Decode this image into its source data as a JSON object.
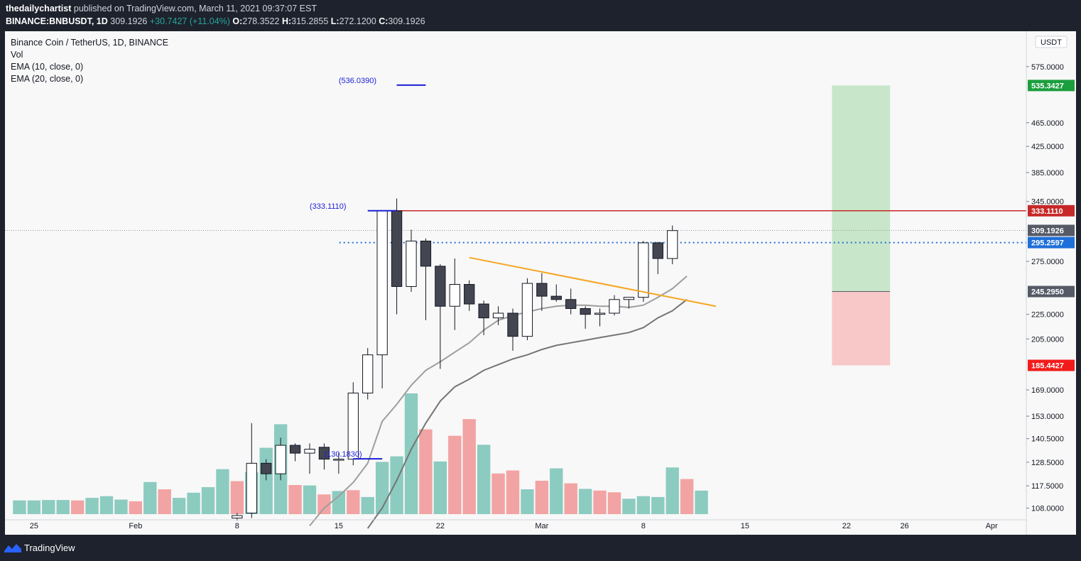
{
  "header": {
    "publisher": "thedailychartist",
    "published_text": "published on TradingView.com, March 11, 2021 09:37:07 EST",
    "symbol": "BINANCE:BNBUSDT, 1D",
    "last": "309.1926",
    "change": "+30.7427 (+11.04%)",
    "o_label": "O:",
    "o": "278.3522",
    "h_label": "H:",
    "h": "315.2855",
    "l_label": "L:",
    "l": "272.1200",
    "c_label": "C:",
    "c": "309.1926"
  },
  "legend": {
    "title": "Binance Coin / TetherUS, 1D, BINANCE",
    "vol": "Vol",
    "ema10": "EMA (10, close, 0)",
    "ema20": "EMA (20, close, 0)"
  },
  "footer": {
    "brand": "TradingView",
    "logo_icon": "tradingview-logo-icon"
  },
  "chart_data": {
    "type": "candlestick",
    "y_axis": {
      "scale": "log",
      "currency": "USDT",
      "ticks": [
        "108.0000",
        "117.5000",
        "128.5000",
        "140.5000",
        "153.0000",
        "169.0000",
        "205.0000",
        "225.0000",
        "275.0000",
        "345.0000",
        "385.0000",
        "425.0000",
        "465.0000",
        "575.0000"
      ],
      "tick_values": [
        108,
        117.5,
        128.5,
        140.5,
        153,
        169,
        205,
        225,
        275,
        345,
        385,
        425,
        465,
        575
      ],
      "range": [
        105,
        640
      ]
    },
    "x_axis": {
      "ticks": [
        "25",
        "Feb",
        "8",
        "15",
        "22",
        "Mar",
        "8",
        "15",
        "22",
        "26",
        "Apr"
      ],
      "tick_dates": [
        "2021-01-25",
        "2021-02-01",
        "2021-02-08",
        "2021-02-15",
        "2021-02-22",
        "2021-03-01",
        "2021-03-08",
        "2021-03-15",
        "2021-03-22",
        "2021-03-26",
        "2021-04-01"
      ],
      "range": [
        "2021-01-23",
        "2021-04-03"
      ]
    },
    "candles": [
      {
        "d": "2021-02-08",
        "o": 104,
        "h": 106,
        "l": 103,
        "c": 105
      },
      {
        "d": "2021-02-09",
        "o": 106,
        "h": 149,
        "l": 104,
        "c": 128
      },
      {
        "d": "2021-02-10",
        "o": 128,
        "h": 130,
        "l": 120,
        "c": 123
      },
      {
        "d": "2021-02-11",
        "o": 123,
        "h": 141,
        "l": 120,
        "c": 137
      },
      {
        "d": "2021-02-12",
        "o": 137,
        "h": 138,
        "l": 129,
        "c": 133
      },
      {
        "d": "2021-02-13",
        "o": 133,
        "h": 138,
        "l": 123,
        "c": 135
      },
      {
        "d": "2021-02-14",
        "o": 136,
        "h": 138,
        "l": 125,
        "c": 130
      },
      {
        "d": "2021-02-15",
        "o": 130,
        "h": 133,
        "l": 123,
        "c": 130
      },
      {
        "d": "2021-02-16",
        "o": 130,
        "h": 174,
        "l": 127,
        "c": 167
      },
      {
        "d": "2021-02-17",
        "o": 167,
        "h": 198,
        "l": 163,
        "c": 193
      },
      {
        "d": "2021-02-18",
        "o": 193,
        "h": 333,
        "l": 170,
        "c": 333
      },
      {
        "d": "2021-02-19",
        "o": 333,
        "h": 349,
        "l": 225,
        "c": 250
      },
      {
        "d": "2021-02-20",
        "o": 250,
        "h": 310,
        "l": 245,
        "c": 297
      },
      {
        "d": "2021-02-21",
        "o": 297,
        "h": 300,
        "l": 220,
        "c": 270
      },
      {
        "d": "2021-02-22",
        "o": 270,
        "h": 272,
        "l": 183,
        "c": 232
      },
      {
        "d": "2021-02-23",
        "o": 232,
        "h": 278,
        "l": 212,
        "c": 252
      },
      {
        "d": "2021-02-24",
        "o": 252,
        "h": 256,
        "l": 228,
        "c": 234
      },
      {
        "d": "2021-02-25",
        "o": 234,
        "h": 237,
        "l": 208,
        "c": 222
      },
      {
        "d": "2021-02-26",
        "o": 222,
        "h": 232,
        "l": 216,
        "c": 226
      },
      {
        "d": "2021-02-27",
        "o": 226,
        "h": 230,
        "l": 196,
        "c": 207
      },
      {
        "d": "2021-02-28",
        "o": 207,
        "h": 258,
        "l": 204,
        "c": 253
      },
      {
        "d": "2021-03-01",
        "o": 253,
        "h": 263,
        "l": 228,
        "c": 241
      },
      {
        "d": "2021-03-02",
        "o": 241,
        "h": 252,
        "l": 236,
        "c": 238
      },
      {
        "d": "2021-03-03",
        "o": 238,
        "h": 248,
        "l": 225,
        "c": 230
      },
      {
        "d": "2021-03-04",
        "o": 230,
        "h": 232,
        "l": 213,
        "c": 225
      },
      {
        "d": "2021-03-05",
        "o": 225,
        "h": 230,
        "l": 215,
        "c": 226
      },
      {
        "d": "2021-03-06",
        "o": 226,
        "h": 242,
        "l": 224,
        "c": 238
      },
      {
        "d": "2021-03-07",
        "o": 238,
        "h": 240,
        "l": 230,
        "c": 240
      },
      {
        "d": "2021-03-08",
        "o": 240,
        "h": 297,
        "l": 236,
        "c": 295
      },
      {
        "d": "2021-03-09",
        "o": 295,
        "h": 296,
        "l": 262,
        "c": 278
      },
      {
        "d": "2021-03-10",
        "o": 278,
        "h": 315,
        "l": 272,
        "c": 309
      }
    ],
    "volume": [
      {
        "d": "2021-01-24",
        "v": 0.032,
        "up": true
      },
      {
        "d": "2021-01-25",
        "v": 0.032,
        "up": true
      },
      {
        "d": "2021-01-26",
        "v": 0.033,
        "up": true
      },
      {
        "d": "2021-01-27",
        "v": 0.033,
        "up": true
      },
      {
        "d": "2021-01-28",
        "v": 0.032,
        "up": false
      },
      {
        "d": "2021-01-29",
        "v": 0.038,
        "up": true
      },
      {
        "d": "2021-01-30",
        "v": 0.042,
        "up": true
      },
      {
        "d": "2021-01-31",
        "v": 0.034,
        "up": true
      },
      {
        "d": "2021-02-01",
        "v": 0.03,
        "up": false
      },
      {
        "d": "2021-02-02",
        "v": 0.075,
        "up": true
      },
      {
        "d": "2021-02-03",
        "v": 0.058,
        "up": false
      },
      {
        "d": "2021-02-04",
        "v": 0.038,
        "up": true
      },
      {
        "d": "2021-02-05",
        "v": 0.05,
        "up": true
      },
      {
        "d": "2021-02-06",
        "v": 0.063,
        "up": true
      },
      {
        "d": "2021-02-07",
        "v": 0.105,
        "up": true
      },
      {
        "d": "2021-02-08",
        "v": 0.077,
        "up": false
      },
      {
        "d": "2021-02-09",
        "v": 0.098,
        "up": true
      },
      {
        "d": "2021-02-10",
        "v": 0.155,
        "up": true
      },
      {
        "d": "2021-02-11",
        "v": 0.21,
        "up": true
      },
      {
        "d": "2021-02-12",
        "v": 0.068,
        "up": false
      },
      {
        "d": "2021-02-13",
        "v": 0.067,
        "up": true
      },
      {
        "d": "2021-02-14",
        "v": 0.046,
        "up": false
      },
      {
        "d": "2021-02-15",
        "v": 0.054,
        "up": true
      },
      {
        "d": "2021-02-16",
        "v": 0.056,
        "up": false
      },
      {
        "d": "2021-02-17",
        "v": 0.04,
        "up": true
      },
      {
        "d": "2021-02-18",
        "v": 0.122,
        "up": true
      },
      {
        "d": "2021-02-19",
        "v": 0.135,
        "up": true
      },
      {
        "d": "2021-02-20",
        "v": 0.282,
        "up": true
      },
      {
        "d": "2021-02-21",
        "v": 0.198,
        "up": false
      },
      {
        "d": "2021-02-22",
        "v": 0.123,
        "up": true
      },
      {
        "d": "2021-02-23",
        "v": 0.183,
        "up": false
      },
      {
        "d": "2021-02-24",
        "v": 0.222,
        "up": false
      },
      {
        "d": "2021-02-25",
        "v": 0.162,
        "up": true
      },
      {
        "d": "2021-02-26",
        "v": 0.095,
        "up": false
      },
      {
        "d": "2021-02-27",
        "v": 0.102,
        "up": false
      },
      {
        "d": "2021-02-28",
        "v": 0.058,
        "up": true
      },
      {
        "d": "2021-03-01",
        "v": 0.078,
        "up": false
      },
      {
        "d": "2021-03-02",
        "v": 0.107,
        "up": true
      },
      {
        "d": "2021-03-03",
        "v": 0.072,
        "up": false
      },
      {
        "d": "2021-03-04",
        "v": 0.059,
        "up": true
      },
      {
        "d": "2021-03-05",
        "v": 0.055,
        "up": false
      },
      {
        "d": "2021-03-06",
        "v": 0.051,
        "up": false
      },
      {
        "d": "2021-03-07",
        "v": 0.036,
        "up": true
      },
      {
        "d": "2021-03-08",
        "v": 0.042,
        "up": true
      },
      {
        "d": "2021-03-09",
        "v": 0.04,
        "up": true
      },
      {
        "d": "2021-03-10",
        "v": 0.109,
        "up": true
      },
      {
        "d": "2021-03-11",
        "v": 0.082,
        "up": false
      },
      {
        "d": "2021-03-12",
        "v": 0.055,
        "up": true
      }
    ],
    "ema10": [
      {
        "d": "2021-02-13",
        "y": 101
      },
      {
        "d": "2021-02-14",
        "y": 108
      },
      {
        "d": "2021-02-15",
        "y": 113
      },
      {
        "d": "2021-02-16",
        "y": 119
      },
      {
        "d": "2021-02-17",
        "y": 128
      },
      {
        "d": "2021-02-18",
        "y": 150
      },
      {
        "d": "2021-02-19",
        "y": 160
      },
      {
        "d": "2021-02-20",
        "y": 172
      },
      {
        "d": "2021-02-21",
        "y": 182
      },
      {
        "d": "2021-02-22",
        "y": 188
      },
      {
        "d": "2021-02-23",
        "y": 195
      },
      {
        "d": "2021-02-24",
        "y": 202
      },
      {
        "d": "2021-02-25",
        "y": 212
      },
      {
        "d": "2021-02-26",
        "y": 220
      },
      {
        "d": "2021-02-27",
        "y": 224
      },
      {
        "d": "2021-02-28",
        "y": 227
      },
      {
        "d": "2021-03-01",
        "y": 230
      },
      {
        "d": "2021-03-02",
        "y": 232
      },
      {
        "d": "2021-03-03",
        "y": 233
      },
      {
        "d": "2021-03-04",
        "y": 233
      },
      {
        "d": "2021-03-05",
        "y": 232
      },
      {
        "d": "2021-03-06",
        "y": 232
      },
      {
        "d": "2021-03-07",
        "y": 231
      },
      {
        "d": "2021-03-08",
        "y": 233
      },
      {
        "d": "2021-03-09",
        "y": 240
      },
      {
        "d": "2021-03-10",
        "y": 248
      },
      {
        "d": "2021-03-11",
        "y": 260
      }
    ],
    "ema20": [
      {
        "d": "2021-02-17",
        "y": 100
      },
      {
        "d": "2021-02-18",
        "y": 108
      },
      {
        "d": "2021-02-19",
        "y": 120
      },
      {
        "d": "2021-02-20",
        "y": 135
      },
      {
        "d": "2021-02-21",
        "y": 149
      },
      {
        "d": "2021-02-22",
        "y": 162
      },
      {
        "d": "2021-02-23",
        "y": 171
      },
      {
        "d": "2021-02-24",
        "y": 176
      },
      {
        "d": "2021-02-25",
        "y": 182
      },
      {
        "d": "2021-02-26",
        "y": 186
      },
      {
        "d": "2021-02-27",
        "y": 190
      },
      {
        "d": "2021-02-28",
        "y": 193
      },
      {
        "d": "2021-03-01",
        "y": 197
      },
      {
        "d": "2021-03-02",
        "y": 200
      },
      {
        "d": "2021-03-03",
        "y": 202
      },
      {
        "d": "2021-03-04",
        "y": 204
      },
      {
        "d": "2021-03-05",
        "y": 206
      },
      {
        "d": "2021-03-06",
        "y": 208
      },
      {
        "d": "2021-03-07",
        "y": 210
      },
      {
        "d": "2021-03-08",
        "y": 214
      },
      {
        "d": "2021-03-09",
        "y": 222
      },
      {
        "d": "2021-03-10",
        "y": 228
      },
      {
        "d": "2021-03-11",
        "y": 238
      }
    ],
    "resistance": {
      "y": 333.111,
      "label": "333.1110",
      "color": "#c62828"
    },
    "current_price": {
      "y": 309.1926,
      "label": "309.1926"
    },
    "entry_level": {
      "y": 295.2597,
      "label": "295.2597",
      "color": "#1e6fd9"
    },
    "trendline": {
      "from": {
        "d": "2021-02-24",
        "y": 279
      },
      "to": {
        "d": "2021-03-13",
        "y": 232
      },
      "color": "#f5a623"
    },
    "measure_lines": [
      {
        "d_from": "2021-02-19",
        "d_to": "2021-02-21",
        "y": 536.039,
        "label": "(536.0390)",
        "label_d": "2021-02-15"
      },
      {
        "d_from": "2021-02-17",
        "d_to": "2021-02-19",
        "y": 333.111,
        "label": "(333.1110)",
        "label_d": "2021-02-13"
      },
      {
        "d_from": "2021-02-16",
        "d_to": "2021-02-18",
        "y": 130.183,
        "label": "(130.1830)",
        "label_d": "2021-02-14"
      }
    ],
    "position": {
      "d_from": "2021-03-21",
      "d_to": "2021-03-25",
      "target": 535.3427,
      "target_label": "535.3427",
      "entry": 245.295,
      "entry_label": "245.2950",
      "stop": 185.4427,
      "stop_label": "185.4427"
    },
    "colors": {
      "up": "#ffffff",
      "down": "#434651",
      "wick": "#131722",
      "vol_up": "#8ccbc0",
      "vol_down": "#f2a3a3",
      "ema10": "#9e9e9e",
      "ema20": "#757575",
      "target_fill": "#c8e6c9",
      "stop_fill": "#f8c8c8",
      "target_tag": "#1b9e3e",
      "stop_tag": "#f21b1b",
      "neutral_tag": "#555a66"
    }
  }
}
